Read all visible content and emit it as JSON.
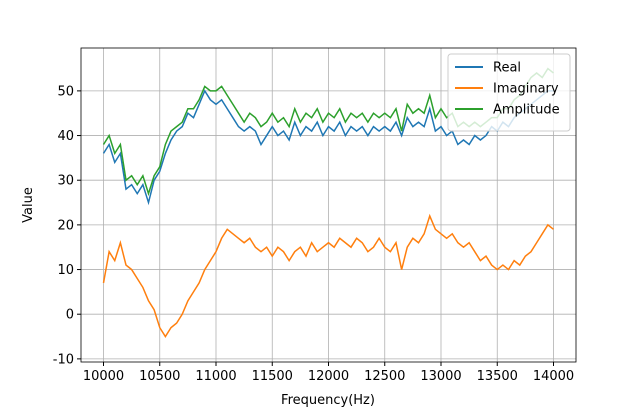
{
  "chart_data": {
    "type": "line",
    "xlabel": "Frequency(Hz)",
    "ylabel": "Value",
    "x": [
      10000,
      10050,
      10100,
      10150,
      10200,
      10250,
      10300,
      10350,
      10400,
      10450,
      10500,
      10550,
      10600,
      10650,
      10700,
      10750,
      10800,
      10850,
      10900,
      10950,
      11000,
      11050,
      11100,
      11150,
      11200,
      11250,
      11300,
      11350,
      11400,
      11450,
      11500,
      11550,
      11600,
      11650,
      11700,
      11750,
      11800,
      11850,
      11900,
      11950,
      12000,
      12050,
      12100,
      12150,
      12200,
      12250,
      12300,
      12350,
      12400,
      12450,
      12500,
      12550,
      12600,
      12650,
      12700,
      12750,
      12800,
      12850,
      12900,
      12950,
      13000,
      13050,
      13100,
      13150,
      13200,
      13250,
      13300,
      13350,
      13400,
      13450,
      13500,
      13550,
      13600,
      13650,
      13700,
      13750,
      13800,
      13850,
      13900,
      13950,
      14000
    ],
    "series": [
      {
        "name": "Real",
        "color": "#1f77b4",
        "values": [
          36,
          38,
          34,
          36,
          28,
          29,
          27,
          29,
          25,
          30,
          32,
          36,
          39,
          41,
          42,
          45,
          44,
          47,
          50,
          48,
          47,
          48,
          46,
          44,
          42,
          41,
          42,
          41,
          38,
          40,
          42,
          40,
          41,
          39,
          43,
          40,
          42,
          41,
          43,
          40,
          42,
          41,
          43,
          40,
          42,
          41,
          42,
          40,
          42,
          41,
          42,
          41,
          43,
          40,
          44,
          42,
          43,
          42,
          46,
          41,
          42,
          40,
          41,
          38,
          39,
          38,
          40,
          39,
          40,
          42,
          41,
          43,
          42,
          44,
          45,
          46,
          47,
          48,
          49,
          50,
          50
        ]
      },
      {
        "name": "Imaginary",
        "color": "#ff7f0e",
        "values": [
          7,
          14,
          12,
          16,
          11,
          10,
          8,
          6,
          3,
          1,
          -3,
          -5,
          -3,
          -2,
          0,
          3,
          5,
          7,
          10,
          12,
          14,
          17,
          19,
          18,
          17,
          16,
          17,
          15,
          14,
          15,
          13,
          15,
          14,
          12,
          14,
          15,
          13,
          16,
          14,
          15,
          16,
          15,
          17,
          16,
          15,
          17,
          16,
          14,
          15,
          17,
          15,
          14,
          16,
          10,
          15,
          17,
          16,
          18,
          22,
          19,
          18,
          17,
          18,
          16,
          15,
          16,
          14,
          12,
          13,
          11,
          10,
          11,
          10,
          12,
          11,
          13,
          14,
          16,
          18,
          20,
          19
        ]
      },
      {
        "name": "Amplitude",
        "color": "#2ca02c",
        "values": [
          38,
          40,
          36,
          38,
          30,
          31,
          29,
          31,
          27,
          31,
          33,
          38,
          41,
          42,
          43,
          46,
          46,
          48,
          51,
          50,
          50,
          51,
          49,
          47,
          45,
          43,
          45,
          44,
          42,
          43,
          45,
          43,
          44,
          42,
          46,
          43,
          45,
          44,
          46,
          43,
          45,
          44,
          46,
          43,
          45,
          44,
          45,
          43,
          45,
          44,
          45,
          44,
          46,
          41,
          47,
          45,
          46,
          45,
          49,
          44,
          46,
          44,
          45,
          42,
          43,
          42,
          43,
          42,
          43,
          44,
          44,
          46,
          46,
          48,
          49,
          51,
          53,
          54,
          53,
          55,
          54
        ]
      }
    ],
    "xlim": [
      9800,
      14200
    ],
    "ylim": [
      -10.7,
      59.6
    ],
    "xticks": [
      10000,
      10500,
      11000,
      11500,
      12000,
      12500,
      13000,
      13500,
      14000
    ],
    "yticks": [
      -10,
      0,
      10,
      20,
      30,
      40,
      50
    ],
    "grid": true,
    "legend": "upper right"
  }
}
